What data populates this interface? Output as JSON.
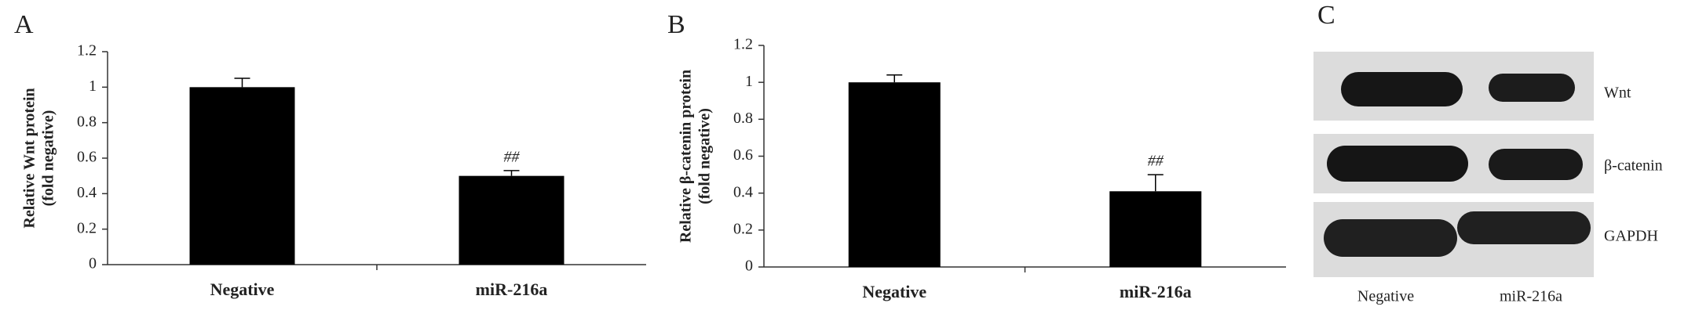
{
  "chart_data": [
    {
      "type": "bar",
      "panel_label": "A",
      "ylabel": [
        "Relative Wnt protein",
        "(fold negative)"
      ],
      "categories": [
        "Negative",
        "miR-216a"
      ],
      "values": [
        1,
        0.5
      ],
      "errors": [
        0.05,
        0.03
      ],
      "significance": [
        null,
        "##"
      ],
      "color": "#000000",
      "ylim": [
        0,
        1.2
      ],
      "yticks": [
        0,
        0.2,
        0.4,
        0.6,
        0.8,
        1,
        1.2
      ]
    },
    {
      "type": "bar",
      "panel_label": "B",
      "ylabel": [
        "Relative β-catenin protein",
        "(fold negative)"
      ],
      "categories": [
        "Negative",
        "miR-216a"
      ],
      "values": [
        1,
        0.41
      ],
      "errors": [
        0.04,
        0.09
      ],
      "significance": [
        null,
        "##"
      ],
      "color": "#000000",
      "ylim": [
        0,
        1.2
      ],
      "yticks": [
        0,
        0.2,
        0.4,
        0.6,
        0.8,
        1,
        1.2
      ]
    }
  ],
  "blot": {
    "panel_label": "C",
    "bands": [
      "Wnt",
      "β-catenin",
      "GAPDH"
    ],
    "lanes": [
      "Negative",
      "miR-216a"
    ]
  }
}
